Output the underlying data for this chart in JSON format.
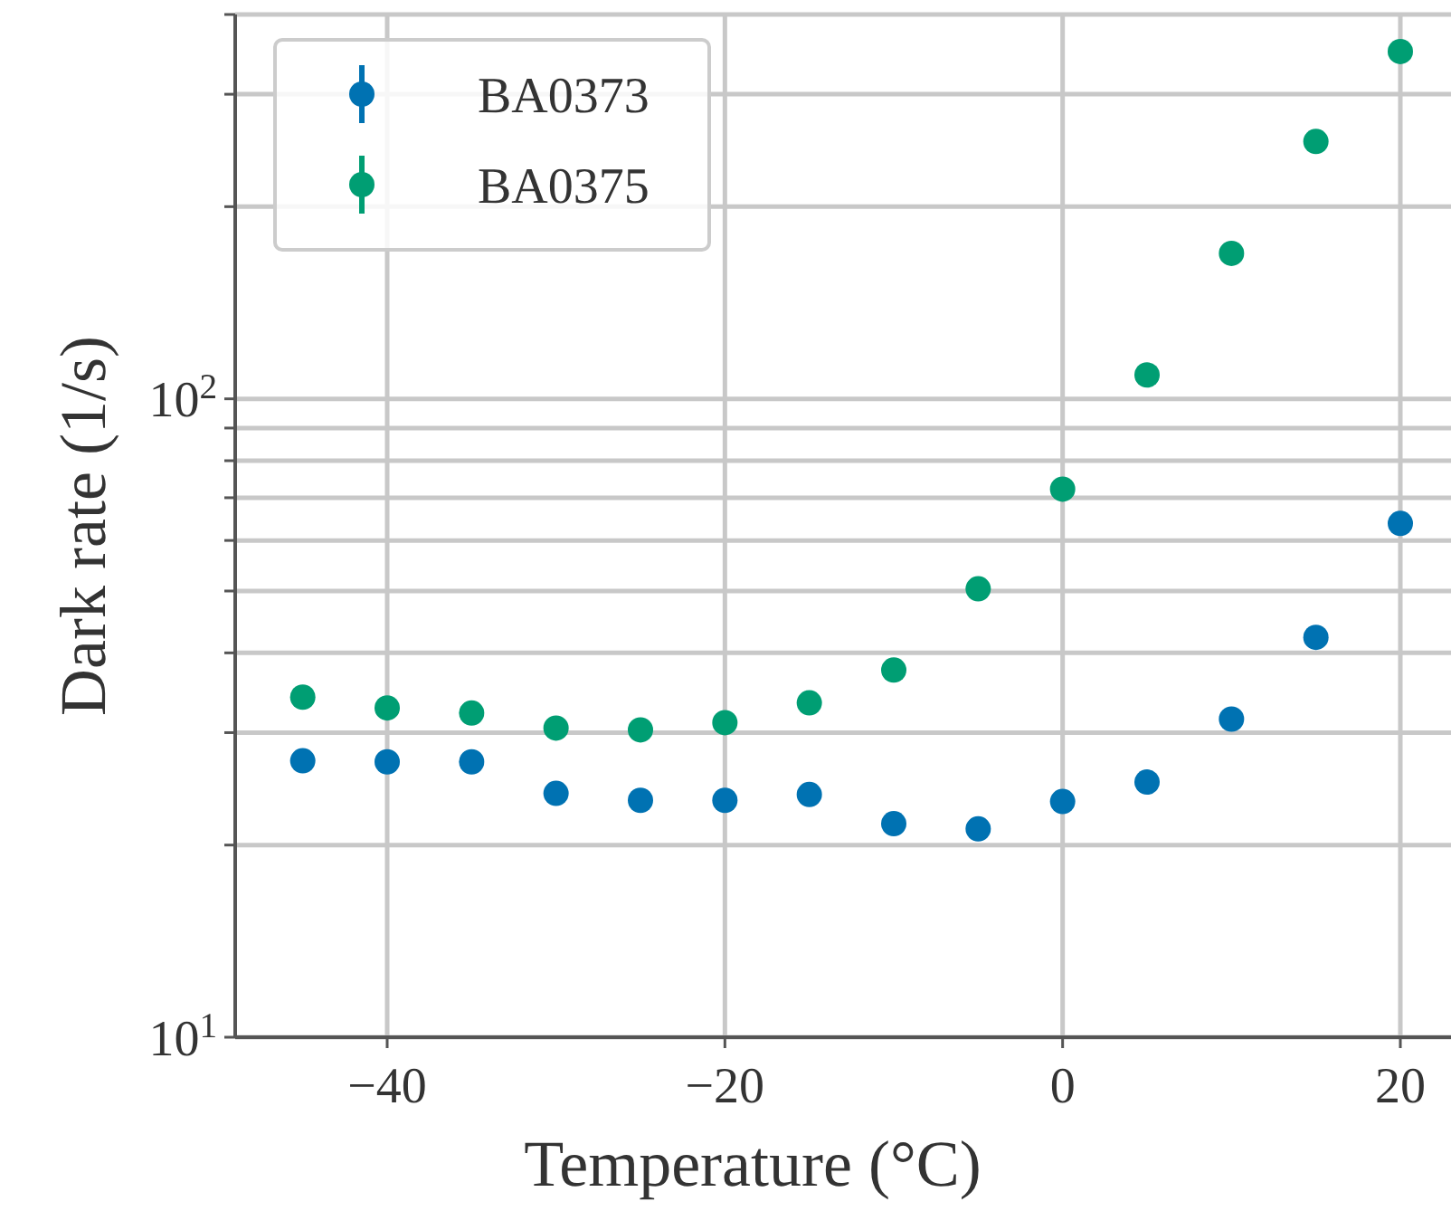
{
  "chart_data": {
    "type": "scatter",
    "xlabel": "Temperature (°C)",
    "ylabel": "Dark rate (1/s)",
    "xlim": [
      -49,
      23
    ],
    "xticks": [
      {
        "value": -40,
        "label": "−40"
      },
      {
        "value": -20,
        "label": "−20"
      },
      {
        "value": 0,
        "label": "0"
      },
      {
        "value": 20,
        "label": "20"
      }
    ],
    "ylim": [
      10,
      400
    ],
    "log": true,
    "yticks": [
      {
        "value": 10,
        "label": "10$^{1}$"
      },
      {
        "value": 20,
        "label": null
      },
      {
        "value": 30,
        "label": null
      },
      {
        "value": 40,
        "label": null
      },
      {
        "value": 50,
        "label": null
      },
      {
        "value": 60,
        "label": null
      },
      {
        "value": 70,
        "label": null
      },
      {
        "value": 80,
        "label": null
      },
      {
        "value": 90,
        "label": null
      },
      {
        "value": 100,
        "label": "10$^{2}$"
      },
      {
        "value": 200,
        "label": null
      },
      {
        "value": 300,
        "label": null
      },
      {
        "value": 400,
        "label": null
      }
    ],
    "grid": true,
    "legend": "top left",
    "marker": "circle",
    "x": [
      -45,
      -40,
      -35,
      -30,
      -25,
      -20,
      -15,
      -10,
      -5,
      0,
      5,
      10,
      15,
      20
    ],
    "series": [
      {
        "name": "BA0373",
        "color": "#0072b2",
        "values": [
          27.1,
          27,
          27,
          24.1,
          23.5,
          23.5,
          24,
          21.6,
          21.2,
          23.4,
          25.1,
          31.5,
          42.3,
          63.8
        ]
      },
      {
        "name": "BA0375",
        "color": "#009e73",
        "values": [
          34.1,
          32.8,
          32.2,
          30.5,
          30.3,
          31.1,
          33.4,
          37.6,
          50.4,
          72.2,
          109,
          169,
          253,
          350
        ]
      }
    ]
  }
}
